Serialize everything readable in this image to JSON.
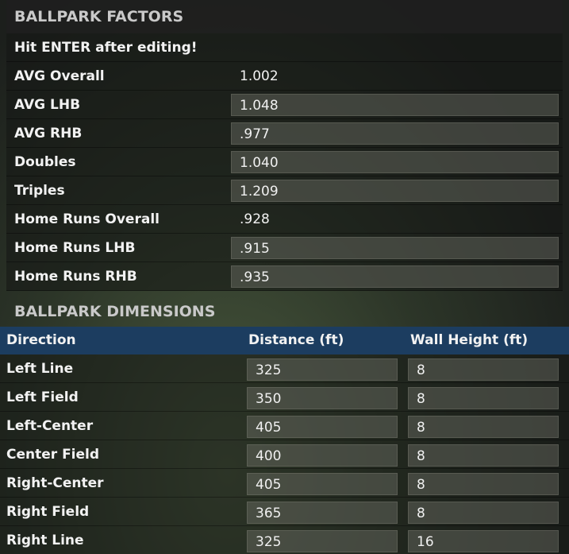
{
  "factors": {
    "title": "BALLPARK FACTORS",
    "note": "Hit ENTER after editing!",
    "rows": [
      {
        "label": "AVG Overall",
        "value": "1.002",
        "editable": false
      },
      {
        "label": "AVG LHB",
        "value": "1.048",
        "editable": true
      },
      {
        "label": "AVG RHB",
        "value": ".977",
        "editable": true
      },
      {
        "label": "Doubles",
        "value": "1.040",
        "editable": true
      },
      {
        "label": "Triples",
        "value": "1.209",
        "editable": true
      },
      {
        "label": "Home Runs Overall",
        "value": ".928",
        "editable": false
      },
      {
        "label": "Home Runs LHB",
        "value": ".915",
        "editable": true
      },
      {
        "label": "Home Runs RHB",
        "value": ".935",
        "editable": true
      }
    ]
  },
  "dimensions": {
    "title": "BALLPARK DIMENSIONS",
    "columns": [
      "Direction",
      "Distance (ft)",
      "Wall Height (ft)"
    ],
    "rows": [
      [
        "Left Line",
        "325",
        "8"
      ],
      [
        "Left Field",
        "350",
        "8"
      ],
      [
        "Left-Center",
        "405",
        "8"
      ],
      [
        "Center Field",
        "400",
        "8"
      ],
      [
        "Right-Center",
        "405",
        "8"
      ],
      [
        "Right Field",
        "365",
        "8"
      ],
      [
        "Right Line",
        "325",
        "16"
      ]
    ]
  }
}
